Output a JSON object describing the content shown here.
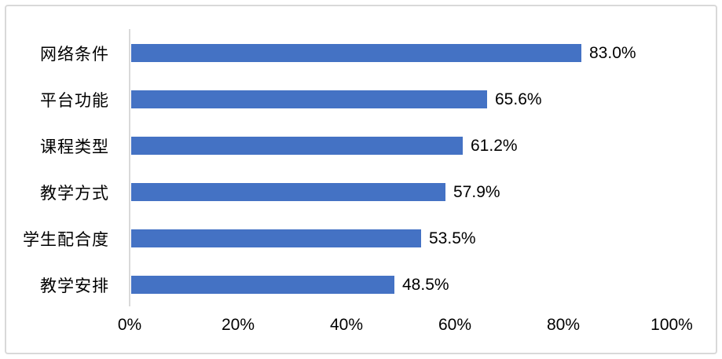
{
  "chart_data": {
    "type": "bar",
    "orientation": "horizontal",
    "title": "",
    "xlabel": "",
    "ylabel": "",
    "categories": [
      "网络条件",
      "平台功能",
      "课程类型",
      "教学方式",
      "学生配合度",
      "教学安排"
    ],
    "values": [
      83.0,
      65.6,
      61.2,
      57.9,
      53.5,
      48.5
    ],
    "value_labels": [
      "83.0%",
      "65.6%",
      "61.2%",
      "57.9%",
      "53.5%",
      "48.5%"
    ],
    "xticks": [
      "0%",
      "20%",
      "40%",
      "60%",
      "80%",
      "100%"
    ],
    "xtick_values": [
      0,
      20,
      40,
      60,
      80,
      100
    ],
    "xlim": [
      0,
      100
    ],
    "grid": false,
    "legend_visible": false,
    "colors": {
      "bar": "#4472c4",
      "axis_line": "#d9d9d9",
      "frame_border": "#d9d9d9",
      "text": "#000000",
      "background": "#ffffff"
    }
  }
}
